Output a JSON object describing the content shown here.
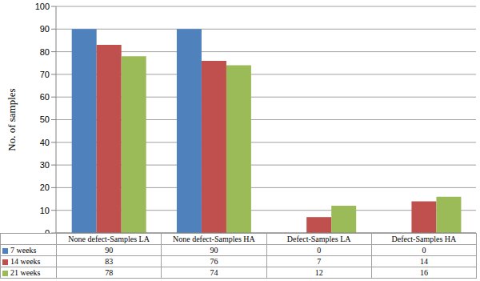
{
  "chart_data": {
    "type": "bar",
    "y_label": "No. of samples",
    "categories": [
      "None defect-Samples LA",
      "None defect-Samples HA",
      "Defect-Samples LA",
      "Defect-Samples HA"
    ],
    "series": [
      {
        "name": "7 weeks",
        "color": "#4f81bd",
        "values": [
          90,
          90,
          0,
          0
        ]
      },
      {
        "name": "14 weeks",
        "color": "#c0504d",
        "values": [
          83,
          76,
          7,
          14
        ]
      },
      {
        "name": "21 weeks",
        "color": "#9bbb59",
        "values": [
          78,
          74,
          12,
          16
        ]
      }
    ],
    "ylim": [
      0,
      100
    ],
    "yticks": [
      0,
      10,
      20,
      30,
      40,
      50,
      60,
      70,
      80,
      90,
      100
    ],
    "grid": true,
    "tick_labels": "y"
  }
}
